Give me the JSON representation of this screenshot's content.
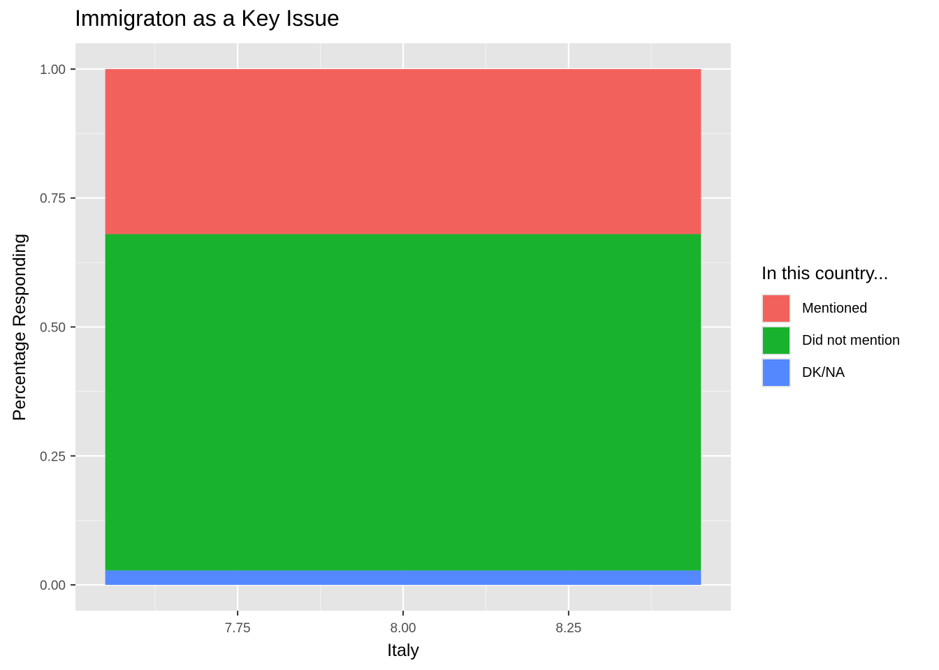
{
  "chart_data": {
    "type": "bar",
    "stacked": true,
    "title": "Immigraton as a Key Issue",
    "xlabel": "Italy",
    "ylabel": "Percentage Responding",
    "x_center": 8.0,
    "bar_width": 0.9,
    "xlim": [
      7.505,
      8.495
    ],
    "ylim": [
      -0.05,
      1.05
    ],
    "x_ticks": [
      "7.75",
      "8.00",
      "8.25"
    ],
    "x_tick_values": [
      7.75,
      8.0,
      8.25
    ],
    "y_ticks": [
      "0.00",
      "0.25",
      "0.50",
      "0.75",
      "1.00"
    ],
    "y_tick_values": [
      0,
      0.25,
      0.5,
      0.75,
      1.0
    ],
    "grid": true,
    "legend": {
      "title": "In this country...",
      "position": "right"
    },
    "series": [
      {
        "name": "Mentioned",
        "value": 0.32,
        "color": "#F3615D"
      },
      {
        "name": "Did not mention",
        "value": 0.652,
        "color": "#19B22F"
      },
      {
        "name": "DK/NA",
        "value": 0.028,
        "color": "#5388FF"
      }
    ]
  }
}
